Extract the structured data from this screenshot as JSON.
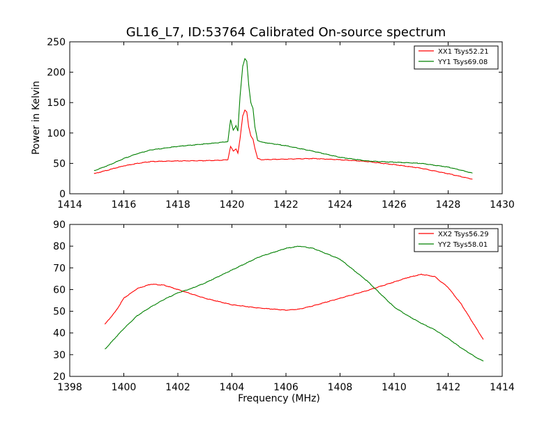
{
  "figure": {
    "title": "GL16_L7, ID:53764 Calibrated On-source spectrum",
    "background": "#ffffff"
  },
  "chart_data": [
    {
      "type": "line",
      "title": "GL16_L7, ID:53764 Calibrated On-source spectrum",
      "xlabel": "",
      "ylabel": "Power in Kelvin",
      "xlim": [
        1414,
        1430
      ],
      "ylim": [
        0,
        250
      ],
      "xticks": [
        1414,
        1416,
        1418,
        1420,
        1422,
        1424,
        1426,
        1428,
        1430
      ],
      "yticks": [
        0,
        50,
        100,
        150,
        200,
        250
      ],
      "grid": false,
      "legend_position": "top-right",
      "series": [
        {
          "name": "XX1 Tsys52.21",
          "color": "#ff0000",
          "x": [
            1414.9,
            1415.5,
            1416,
            1416.5,
            1417,
            1418,
            1419,
            1419.5,
            1419.85,
            1419.95,
            1420.05,
            1420.15,
            1420.22,
            1420.3,
            1420.4,
            1420.48,
            1420.55,
            1420.62,
            1420.7,
            1420.78,
            1420.85,
            1420.95,
            1421.1,
            1422,
            1423,
            1424,
            1425,
            1426,
            1427,
            1428,
            1428.9
          ],
          "values": [
            33,
            40,
            46,
            50,
            53,
            54,
            54.5,
            55,
            56,
            78,
            70,
            74,
            67,
            90,
            128,
            138,
            135,
            110,
            95,
            90,
            75,
            58,
            56,
            57,
            58,
            56,
            53,
            48,
            42,
            33,
            24
          ]
        },
        {
          "name": "YY1 Tsys69.08",
          "color": "#008000",
          "x": [
            1414.9,
            1415.5,
            1416,
            1416.5,
            1417,
            1418,
            1419,
            1419.5,
            1419.85,
            1419.95,
            1420.05,
            1420.15,
            1420.22,
            1420.3,
            1420.4,
            1420.48,
            1420.55,
            1420.62,
            1420.7,
            1420.78,
            1420.85,
            1420.95,
            1421.1,
            1422,
            1423,
            1424,
            1425,
            1426,
            1427,
            1428,
            1428.9
          ],
          "values": [
            38,
            48,
            58,
            66,
            72,
            78,
            82,
            84,
            86,
            122,
            105,
            112,
            103,
            160,
            210,
            222,
            218,
            180,
            150,
            140,
            110,
            88,
            85,
            79,
            70,
            60,
            54,
            52,
            50,
            44,
            34
          ]
        }
      ]
    },
    {
      "type": "line",
      "title": "",
      "xlabel": "Frequency (MHz)",
      "ylabel": "",
      "xlim": [
        1398,
        1414
      ],
      "ylim": [
        20,
        90
      ],
      "xticks": [
        1398,
        1400,
        1402,
        1404,
        1406,
        1408,
        1410,
        1412,
        1414
      ],
      "yticks": [
        20,
        30,
        40,
        50,
        60,
        70,
        80,
        90
      ],
      "grid": false,
      "legend_position": "top-right",
      "series": [
        {
          "name": "XX2 Tsys56.29",
          "color": "#ff0000",
          "x": [
            1399.3,
            1399.7,
            1400,
            1400.5,
            1401,
            1401.5,
            1402,
            1402.5,
            1403,
            1404,
            1405,
            1406,
            1406.5,
            1407,
            1408,
            1409,
            1410,
            1410.5,
            1411,
            1411.5,
            1412,
            1412.5,
            1413,
            1413.3
          ],
          "values": [
            44,
            50,
            56,
            60.5,
            62.5,
            62,
            60,
            58,
            56,
            53,
            51.5,
            50.5,
            51,
            52.5,
            56,
            59.5,
            63.5,
            65.5,
            67,
            66,
            61,
            53,
            43,
            37
          ]
        },
        {
          "name": "YY2 Tsys58.01",
          "color": "#008000",
          "x": [
            1399.3,
            1399.7,
            1400,
            1400.5,
            1401,
            1401.5,
            1402,
            1402.5,
            1403,
            1404,
            1405,
            1406,
            1406.5,
            1407,
            1408,
            1409,
            1410,
            1410.5,
            1411,
            1411.5,
            1412,
            1412.5,
            1413,
            1413.3
          ],
          "values": [
            32.5,
            38,
            42,
            48,
            52,
            55.5,
            58.5,
            60.5,
            63,
            69,
            75,
            79,
            80,
            79,
            74,
            64,
            52,
            48,
            44.5,
            41.5,
            37.5,
            33,
            29,
            27
          ]
        }
      ]
    }
  ]
}
